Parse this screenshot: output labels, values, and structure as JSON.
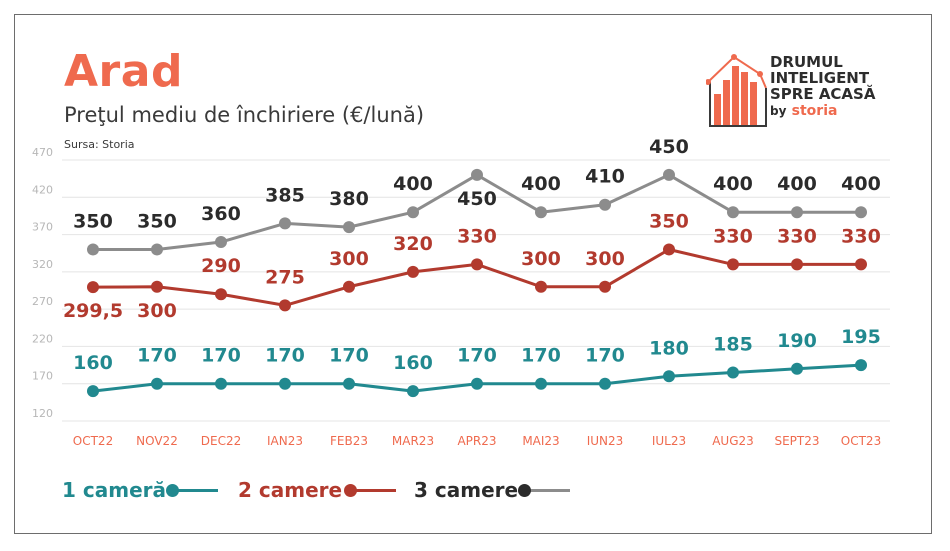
{
  "header": {
    "title": "Arad",
    "subtitle": "Preţul mediu de închiriere (€/lună)",
    "source": "Sursa: Storia"
  },
  "logo": {
    "line1": "DRUMUL",
    "line2": "INTELIGENT",
    "line3": "SPRE ACASĂ",
    "by": "by",
    "brand": "storia",
    "icon": "bar-chart-house-icon"
  },
  "colors": {
    "title": "#ef6a4e",
    "teal": "#21898f",
    "red": "#b23a2e",
    "gray": "#8c8c8c",
    "dark": "#2b2b2b",
    "month": "#ef6a4e"
  },
  "chart_data": {
    "type": "line",
    "title": "Preţul mediu de închiriere (€/lună)",
    "categories": [
      "OCT22",
      "NOV22",
      "DEC22",
      "IAN23",
      "FEB23",
      "MAR23",
      "APR23",
      "MAI23",
      "IUN23",
      "IUL23",
      "AUG23",
      "SEPT23",
      "OCT23"
    ],
    "yticks": [
      120,
      170,
      220,
      270,
      320,
      370,
      420,
      470
    ],
    "ylim": [
      120,
      470
    ],
    "grid": true,
    "legend": "bottom",
    "series": [
      {
        "name": "1 cameră",
        "color": "#21898f",
        "values": [
          160,
          170,
          170,
          170,
          170,
          160,
          170,
          170,
          170,
          180,
          185,
          190,
          195
        ],
        "labels": [
          "160",
          "170",
          "170",
          "170",
          "170",
          "160",
          "170",
          "170",
          "170",
          "180",
          "185",
          "190",
          "195"
        ]
      },
      {
        "name": "2 camere",
        "color": "#b23a2e",
        "values": [
          299.5,
          300,
          290,
          275,
          300,
          320,
          330,
          300,
          300,
          350,
          330,
          330,
          330
        ],
        "labels": [
          "299,5",
          "300",
          "290",
          "275",
          "300",
          "320",
          "330",
          "300",
          "300",
          "350",
          "330",
          "330",
          "330"
        ]
      },
      {
        "name": "3 camere",
        "color": "#8c8c8c",
        "values": [
          350,
          350,
          360,
          385,
          380,
          400,
          450,
          400,
          410,
          450,
          400,
          400,
          400
        ],
        "labels": [
          "350",
          "350",
          "360",
          "385",
          "380",
          "400",
          "450",
          "400",
          "410",
          "450",
          "400",
          "400",
          "400"
        ]
      }
    ]
  },
  "legend": {
    "items": [
      {
        "label": "1 cameră"
      },
      {
        "label": "2 camere"
      },
      {
        "label": "3 camere"
      }
    ]
  }
}
